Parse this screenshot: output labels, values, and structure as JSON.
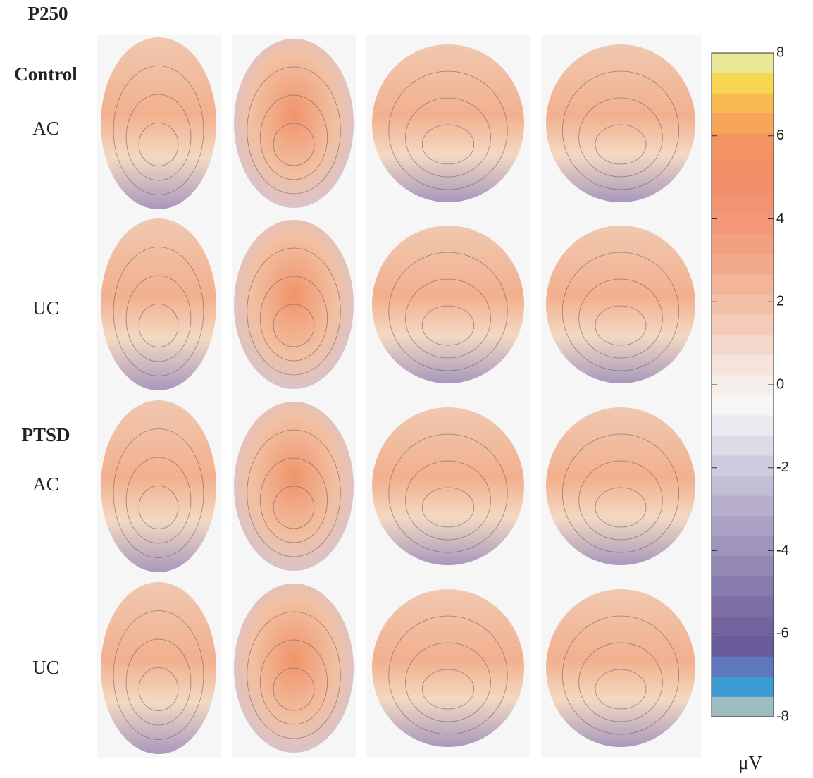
{
  "chart_data": {
    "type": "colorbar",
    "title": "P250",
    "unit": "μV",
    "ylim": [
      -8,
      8
    ],
    "yticks": [
      8,
      6,
      4,
      2,
      0,
      -2,
      -4,
      -6,
      -8
    ],
    "colors": [
      "#9fbcc0",
      "#3d9bd4",
      "#5f77bd",
      "#6a5b9c",
      "#73649f",
      "#7d6fa6",
      "#877bad",
      "#9387b4",
      "#9e94bc",
      "#aaa1c4",
      "#b7afcc",
      "#c4bdd6",
      "#d1cbe0",
      "#dedbe9",
      "#eceaf1",
      "#f8f6f4",
      "#f6eee9",
      "#f5e3dc",
      "#f4d7cb",
      "#f3cbb8",
      "#f3c0a7",
      "#f2b599",
      "#f2aa8c",
      "#f2a081",
      "#f29878",
      "#f29371",
      "#f3906b",
      "#f39066",
      "#f49462",
      "#f6a55a",
      "#f8bb52",
      "#f9d651",
      "#e8e898"
    ]
  },
  "groups": [
    {
      "label": "Control",
      "conditions": [
        "AC",
        "UC"
      ]
    },
    {
      "label": "PTSD",
      "conditions": [
        "AC",
        "UC"
      ]
    }
  ]
}
